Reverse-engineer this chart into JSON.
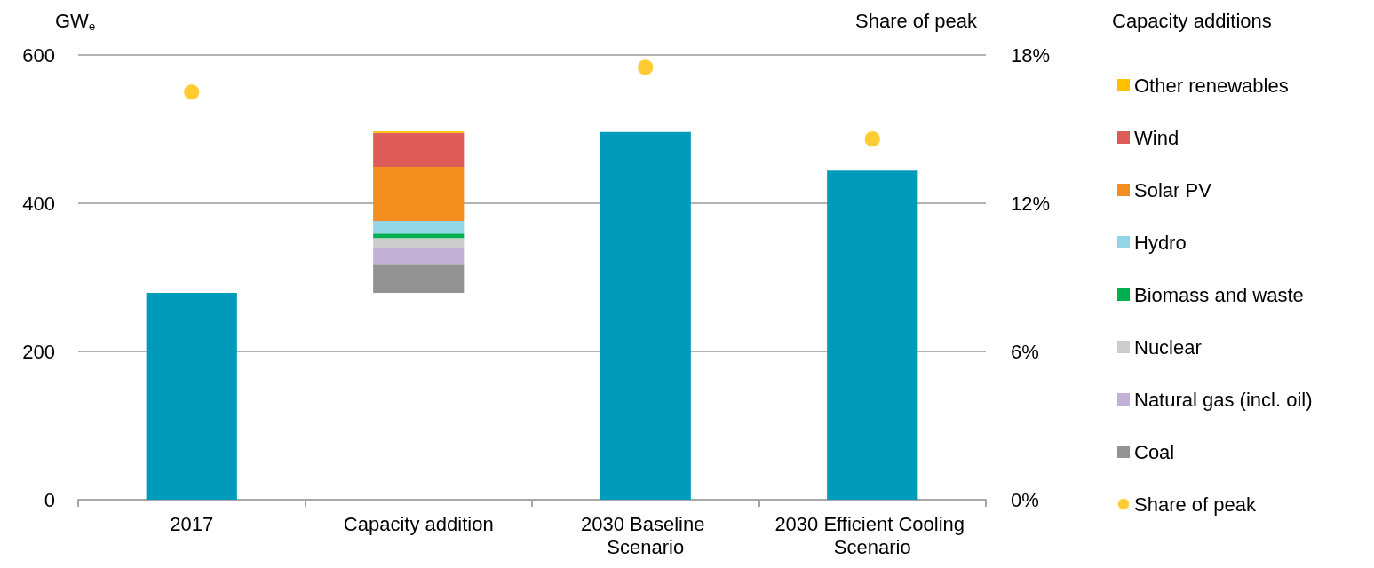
{
  "chart_data": {
    "type": "bar",
    "ylabel": "GW$_{e}$",
    "y2label": "Share of peak",
    "legend_title": "Capacity additions",
    "legend": "right",
    "grid": "y",
    "categories": [
      "2017",
      "Capacity addition",
      "2030 Baseline Scenario",
      "2030 Efficient Cooling Scenario"
    ],
    "ylim": [
      0,
      600
    ],
    "yticks": [
      0,
      200,
      400,
      600
    ],
    "y2lim": [
      0,
      18
    ],
    "y2ticks": [
      {
        "value": 0,
        "label": "0%"
      },
      {
        "value": 6,
        "label": "6%"
      },
      {
        "value": 12,
        "label": "12%"
      },
      {
        "value": 18,
        "label": "18%"
      }
    ],
    "series": [
      {
        "color": "#009bbb",
        "values": [
          279,
          null,
          496,
          444
        ]
      },
      {
        "name": "Coal",
        "color": "#929292",
        "base": [
          null,
          279,
          null,
          null
        ],
        "values": [
          null,
          38,
          null,
          null
        ]
      },
      {
        "name": "Natural gas (incl. oil)",
        "color": "#c3b0d6",
        "base": [
          null,
          317,
          null,
          null
        ],
        "values": [
          null,
          23,
          null,
          null
        ]
      },
      {
        "name": "Nuclear",
        "color": "#cccccc",
        "base": [
          null,
          340,
          null,
          null
        ],
        "values": [
          null,
          13,
          null,
          null
        ]
      },
      {
        "name": "Biomass and waste",
        "color": "#00b050",
        "base": [
          null,
          353,
          null,
          null
        ],
        "values": [
          null,
          6,
          null,
          null
        ]
      },
      {
        "name": "Hydro",
        "color": "#92d5e6",
        "base": [
          null,
          359,
          null,
          null
        ],
        "values": [
          null,
          17,
          null,
          null
        ]
      },
      {
        "name": "Solar PV",
        "color": "#f28e1e",
        "base": [
          null,
          376,
          null,
          null
        ],
        "values": [
          null,
          73,
          null,
          null
        ]
      },
      {
        "name": "Wind",
        "color": "#dd5c5a",
        "base": [
          null,
          449,
          null,
          null
        ],
        "values": [
          null,
          46,
          null,
          null
        ]
      },
      {
        "name": "Other renewables",
        "color": "#ffc000",
        "base": [
          null,
          495,
          null,
          null
        ],
        "values": [
          null,
          2,
          null,
          null
        ]
      },
      {
        "name": "Share of peak",
        "type": "scatter",
        "axis": "y2",
        "marker": "circle",
        "color": "#ffc000",
        "values": [
          16.5,
          null,
          17.5,
          14.6
        ]
      }
    ]
  }
}
